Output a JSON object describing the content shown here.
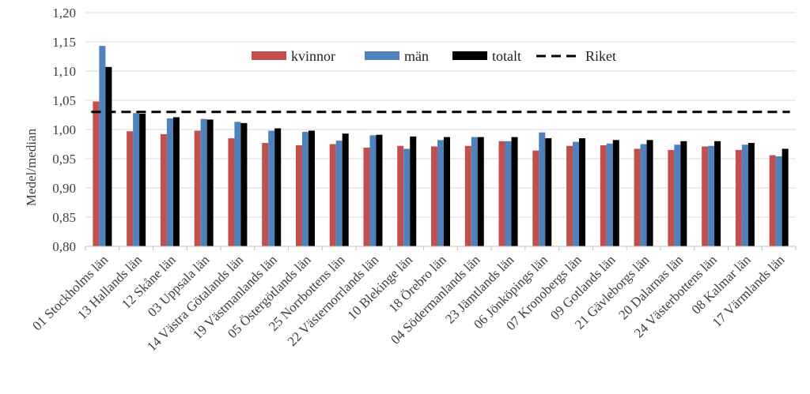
{
  "chart_data": {
    "type": "bar",
    "ylabel": "Medel/median",
    "ylim": [
      0.8,
      1.2
    ],
    "ytick_step": 0.05,
    "ytick_labels": [
      "0,80",
      "0,85",
      "0,90",
      "0,95",
      "1,00",
      "1,05",
      "1,10",
      "1,15",
      "1,20"
    ],
    "grid": true,
    "legend_position": "top",
    "categories": [
      "01 Stockholms län",
      "13 Hallands län",
      "12 Skåne län",
      "03 Uppsala län",
      "14 Västra Götalands län",
      "19 Västmanlands län",
      "05 Östergötlands län",
      "25 Norrbottens län",
      "22 Västernorrlands län",
      "10 Blekinge län",
      "18 Örebro län",
      "04 Södermanlands län",
      "23 Jämtlands län",
      "06 Jönköpings län",
      "07 Kronobergs län",
      "09 Gotlands län",
      "21 Gävleborgs län",
      "20 Dalarnas län",
      "24 Västerbottens län",
      "08 Kalmar län",
      "17 Värmlands län"
    ],
    "series": [
      {
        "name": "kvinnor",
        "color": "#C0504D",
        "values": [
          1.048,
          0.997,
          0.992,
          0.998,
          0.985,
          0.977,
          0.973,
          0.975,
          0.969,
          0.972,
          0.971,
          0.972,
          0.98,
          0.964,
          0.972,
          0.973,
          0.967,
          0.965,
          0.971,
          0.965,
          0.956
        ]
      },
      {
        "name": "män",
        "color": "#4F81BD",
        "values": [
          1.143,
          1.028,
          1.019,
          1.018,
          1.013,
          0.998,
          0.996,
          0.981,
          0.99,
          0.967,
          0.982,
          0.987,
          0.98,
          0.995,
          0.979,
          0.976,
          0.975,
          0.974,
          0.972,
          0.974,
          0.954
        ]
      },
      {
        "name": "totalt",
        "color": "#000000",
        "values": [
          1.107,
          1.027,
          1.021,
          1.017,
          1.011,
          1.002,
          0.998,
          0.993,
          0.991,
          0.988,
          0.987,
          0.987,
          0.987,
          0.985,
          0.985,
          0.982,
          0.982,
          0.98,
          0.98,
          0.977,
          0.967
        ]
      }
    ],
    "reference_line": {
      "name": "Riket",
      "value": 1.03,
      "color": "#000000",
      "style": "dashed"
    }
  }
}
